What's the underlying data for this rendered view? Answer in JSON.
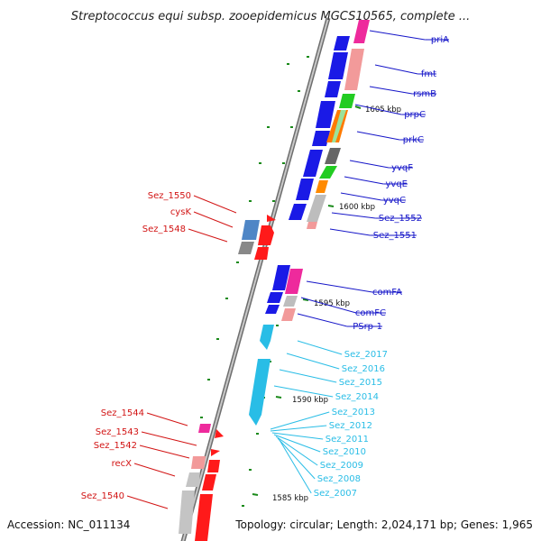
{
  "title": "Streptococcus equi subsp. zooepidemicus MGCS10565, complete ...",
  "accession": "Accession: NC_011134",
  "topology": "Topology: circular; Length: 2,024,171 bp; Genes: 1,965",
  "kbp_labels": [
    "1605 kbp",
    "1600 kbp",
    "1595 kbp",
    "1590 kbp",
    "1585 kbp"
  ],
  "colors": {
    "right_labels": "#1515c8",
    "left_labels": "#d21414",
    "cyan_labels": "#29bde6",
    "backbone": "#9a9a9a",
    "tick": "#1a8a1a"
  },
  "right_genes": [
    "priA",
    "fmt",
    "rsmB",
    "prpC",
    "prkC",
    "yvqF",
    "yvqE",
    "yvqC",
    "Sez_1552",
    "Sez_1551",
    "comFA",
    "comFC",
    "PSrp-1"
  ],
  "cyan_genes": [
    "Sez_2017",
    "Sez_2016",
    "Sez_2015",
    "Sez_2014",
    "Sez_2013",
    "Sez_2012",
    "Sez_2011",
    "Sez_2010",
    "Sez_2009",
    "Sez_2008",
    "Sez_2007"
  ],
  "left_genes": [
    "Sez_1550",
    "cysK",
    "Sez_1548",
    "Sez_1544",
    "Sez_1543",
    "Sez_1542",
    "recX",
    "Sez_1540"
  ]
}
